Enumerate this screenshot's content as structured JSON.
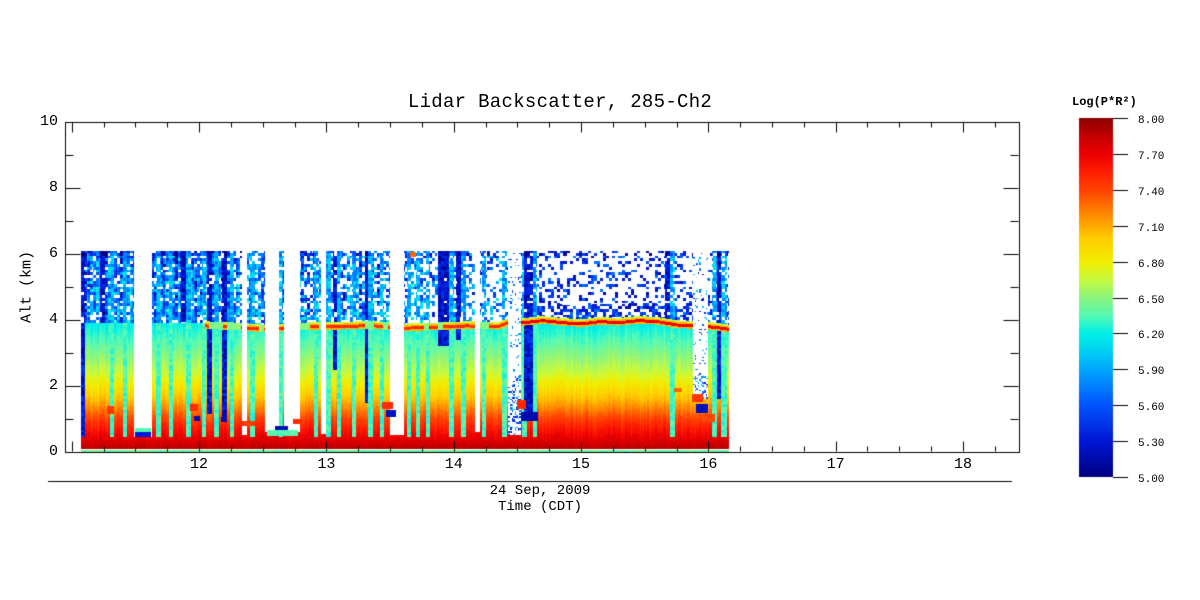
{
  "title": "Lidar Backscatter, 285-Ch2",
  "axes": {
    "x": {
      "date_label": "24 Sep, 2009",
      "label": "Time (CDT)",
      "min": 10.947,
      "max": 18.44,
      "major_ticks": [
        {
          "value": 12,
          "label": "12"
        },
        {
          "value": 13,
          "label": "13"
        },
        {
          "value": 14,
          "label": "14"
        },
        {
          "value": 15,
          "label": "15"
        },
        {
          "value": 16,
          "label": "16"
        },
        {
          "value": 17,
          "label": "17"
        },
        {
          "value": 18,
          "label": "18"
        }
      ],
      "minor_step": 0.25
    },
    "y": {
      "label": "Alt (km)",
      "min": 0,
      "max": 10,
      "major_ticks": [
        {
          "value": 0,
          "label": "0"
        },
        {
          "value": 2,
          "label": "2"
        },
        {
          "value": 4,
          "label": "4"
        },
        {
          "value": 6,
          "label": "6"
        },
        {
          "value": 8,
          "label": "8"
        },
        {
          "value": 10,
          "label": "10"
        }
      ],
      "minor_step": 1
    }
  },
  "colorbar": {
    "title": "Log(P*R²)",
    "min": 5.0,
    "max": 8.0,
    "ticks": [
      {
        "value": 8.0,
        "label": "8.00"
      },
      {
        "value": 7.7,
        "label": "7.70"
      },
      {
        "value": 7.4,
        "label": "7.40"
      },
      {
        "value": 7.1,
        "label": "7.10"
      },
      {
        "value": 6.8,
        "label": "6.80"
      },
      {
        "value": 6.5,
        "label": "6.50"
      },
      {
        "value": 6.2,
        "label": "6.20"
      },
      {
        "value": 5.9,
        "label": "5.90"
      },
      {
        "value": 5.6,
        "label": "5.60"
      },
      {
        "value": 5.3,
        "label": "5.30"
      },
      {
        "value": 5.0,
        "label": "5.00"
      }
    ]
  },
  "chart_data": {
    "type": "heatmap",
    "x_name": "time_cdt_hours",
    "y_name": "altitude_km",
    "value_name": "log_p_r2",
    "time_range": [
      11.07,
      16.16
    ],
    "alt_range": [
      0.0,
      6.08
    ],
    "value_range": [
      5.0,
      8.0
    ],
    "colormap_stops": [
      [
        5.0,
        "#000082"
      ],
      [
        5.3,
        "#0018d8"
      ],
      [
        5.6,
        "#0055ff"
      ],
      [
        5.9,
        "#00a8ff"
      ],
      [
        6.1,
        "#00ddee"
      ],
      [
        6.2,
        "#00f0e8"
      ],
      [
        6.35,
        "#57fab4"
      ],
      [
        6.5,
        "#8df57d"
      ],
      [
        6.65,
        "#c8fa3f"
      ],
      [
        6.8,
        "#f2ee00"
      ],
      [
        7.0,
        "#ffcc00"
      ],
      [
        7.1,
        "#ffaa00"
      ],
      [
        7.25,
        "#ff7700"
      ],
      [
        7.4,
        "#ff4400"
      ],
      [
        7.55,
        "#ff1e00"
      ],
      [
        7.7,
        "#ee0000"
      ],
      [
        7.85,
        "#c40000"
      ],
      [
        8.0,
        "#8d0000"
      ]
    ],
    "surface_line": {
      "alt": 0.05,
      "value": 6.4
    },
    "bottom_band": {
      "alt0": 0.095,
      "alt1": 0.38,
      "value_top": 7.74,
      "value_bottom": 7.88
    },
    "background_profile": [
      [
        0.1,
        7.88
      ],
      [
        0.38,
        7.74
      ],
      [
        0.7,
        7.58
      ],
      [
        1.0,
        7.42
      ],
      [
        1.3,
        7.22
      ],
      [
        1.6,
        7.04
      ],
      [
        2.0,
        6.85
      ],
      [
        2.4,
        6.66
      ],
      [
        2.9,
        6.5
      ],
      [
        3.4,
        6.33
      ],
      [
        3.7,
        6.24
      ],
      [
        4.1,
        6.14
      ]
    ],
    "aerosol_layer": {
      "start_time": 12.05,
      "strong_after": 14.42,
      "core_value_strong": 7.6,
      "core_value_weak": 7.4,
      "track": [
        [
          12.05,
          3.82
        ],
        [
          12.3,
          3.78
        ],
        [
          12.5,
          3.72
        ],
        [
          12.7,
          3.75
        ],
        [
          12.9,
          3.8
        ],
        [
          13.1,
          3.8
        ],
        [
          13.35,
          3.83
        ],
        [
          13.6,
          3.75
        ],
        [
          13.85,
          3.78
        ],
        [
          14.1,
          3.82
        ],
        [
          14.35,
          3.8
        ],
        [
          14.45,
          3.95
        ],
        [
          14.55,
          3.92
        ],
        [
          14.7,
          3.98
        ],
        [
          14.85,
          3.92
        ],
        [
          15.0,
          3.88
        ],
        [
          15.15,
          3.95
        ],
        [
          15.3,
          3.92
        ],
        [
          15.45,
          3.98
        ],
        [
          15.6,
          3.95
        ],
        [
          15.75,
          3.85
        ],
        [
          15.9,
          3.82
        ],
        [
          16.05,
          3.78
        ],
        [
          16.16,
          3.72
        ]
      ]
    },
    "noise_zone": {
      "value_min": 5.0,
      "value_max": 6.35,
      "white_fraction_by_time": [
        [
          11.07,
          0.15
        ],
        [
          12.3,
          0.3
        ],
        [
          13.3,
          0.45
        ],
        [
          14.42,
          0.72
        ],
        [
          16.16,
          0.75
        ]
      ]
    },
    "white_gap_columns": [
      {
        "t0": 11.49,
        "t1": 11.63,
        "alt0": 0.45,
        "speckled": false
      },
      {
        "t0": 12.34,
        "t1": 12.38,
        "alt0": 0.5,
        "speckled": false
      },
      {
        "t0": 12.52,
        "t1": 12.63,
        "alt0": 0.62,
        "speckled": false
      },
      {
        "t0": 12.67,
        "t1": 12.79,
        "alt0": 0.62,
        "speckled": false
      },
      {
        "t0": 12.96,
        "t1": 13.0,
        "alt0": 0.55,
        "speckled": false
      },
      {
        "t0": 13.5,
        "t1": 13.61,
        "alt0": 0.5,
        "speckled": false
      },
      {
        "t0": 14.17,
        "t1": 14.21,
        "alt0": 0.6,
        "speckled": false
      },
      {
        "t0": 14.43,
        "t1": 14.53,
        "alt0": 0.5,
        "speckled": true
      },
      {
        "t0": 15.88,
        "t1": 16.0,
        "alt0": 1.6,
        "speckled": true
      }
    ],
    "attenuated_columns": [
      [
        11.3,
        11.335
      ],
      [
        11.4,
        11.435
      ],
      [
        11.665,
        11.7
      ],
      [
        11.76,
        11.795
      ],
      [
        11.9,
        11.935
      ],
      [
        12.02,
        12.055
      ],
      [
        12.12,
        12.155
      ],
      [
        12.24,
        12.275
      ],
      [
        12.4,
        12.44
      ],
      [
        12.625,
        12.66
      ],
      [
        12.9,
        12.935
      ],
      [
        13.0,
        13.035
      ],
      [
        13.08,
        13.115
      ],
      [
        13.2,
        13.235
      ],
      [
        13.33,
        13.365
      ],
      [
        13.42,
        13.455
      ],
      [
        13.63,
        13.665
      ],
      [
        13.7,
        13.735
      ],
      [
        13.78,
        13.815
      ],
      [
        13.96,
        14.0
      ],
      [
        14.06,
        14.095
      ],
      [
        14.22,
        14.255
      ],
      [
        14.38,
        14.42
      ],
      [
        14.54,
        14.575
      ],
      [
        14.62,
        14.655
      ],
      [
        15.7,
        15.735
      ],
      [
        16.03,
        16.065
      ],
      [
        16.1,
        16.145
      ]
    ],
    "dark_columns": [
      [
        11.07,
        11.105,
        0.45
      ],
      [
        11.22,
        11.26,
        3.9
      ],
      [
        11.86,
        11.9,
        3.95
      ],
      [
        12.06,
        12.1,
        1.15
      ],
      [
        12.18,
        12.22,
        1.0
      ],
      [
        13.05,
        13.08,
        2.5
      ],
      [
        13.3,
        13.33,
        1.5
      ],
      [
        13.88,
        13.96,
        3.2
      ],
      [
        14.02,
        14.06,
        3.4
      ],
      [
        14.55,
        14.62,
        1.0
      ],
      [
        15.66,
        15.7,
        3.9
      ],
      [
        16.07,
        16.1,
        1.6
      ]
    ],
    "features": [
      [
        11.28,
        11.33,
        1.15,
        1.38,
        7.45
      ],
      [
        11.5,
        11.62,
        0.45,
        0.6,
        5.3
      ],
      [
        11.5,
        11.62,
        0.6,
        0.74,
        6.35
      ],
      [
        11.93,
        11.99,
        1.25,
        1.45,
        7.5
      ],
      [
        11.96,
        12.01,
        0.95,
        1.1,
        5.15
      ],
      [
        12.17,
        12.22,
        0.9,
        1.05,
        5.15
      ],
      [
        12.34,
        12.44,
        0.78,
        0.95,
        7.45
      ],
      [
        12.53,
        12.78,
        0.5,
        0.66,
        6.35
      ],
      [
        12.6,
        12.7,
        0.66,
        0.8,
        5.2
      ],
      [
        12.74,
        12.8,
        0.85,
        1.0,
        7.5
      ],
      [
        13.44,
        13.52,
        1.3,
        1.52,
        7.5
      ],
      [
        13.47,
        13.55,
        1.05,
        1.28,
        5.2
      ],
      [
        13.66,
        13.7,
        5.9,
        6.05,
        7.3
      ],
      [
        14.5,
        14.57,
        1.3,
        1.58,
        7.5
      ],
      [
        14.53,
        14.66,
        0.95,
        1.2,
        5.15
      ],
      [
        14.57,
        14.61,
        1.9,
        2.1,
        5.2
      ],
      [
        15.73,
        15.79,
        1.82,
        1.95,
        7.3
      ],
      [
        15.87,
        15.96,
        1.52,
        1.76,
        7.45
      ],
      [
        15.9,
        16.0,
        1.18,
        1.45,
        5.2
      ],
      [
        15.95,
        16.05,
        0.92,
        1.15,
        7.4
      ]
    ]
  }
}
